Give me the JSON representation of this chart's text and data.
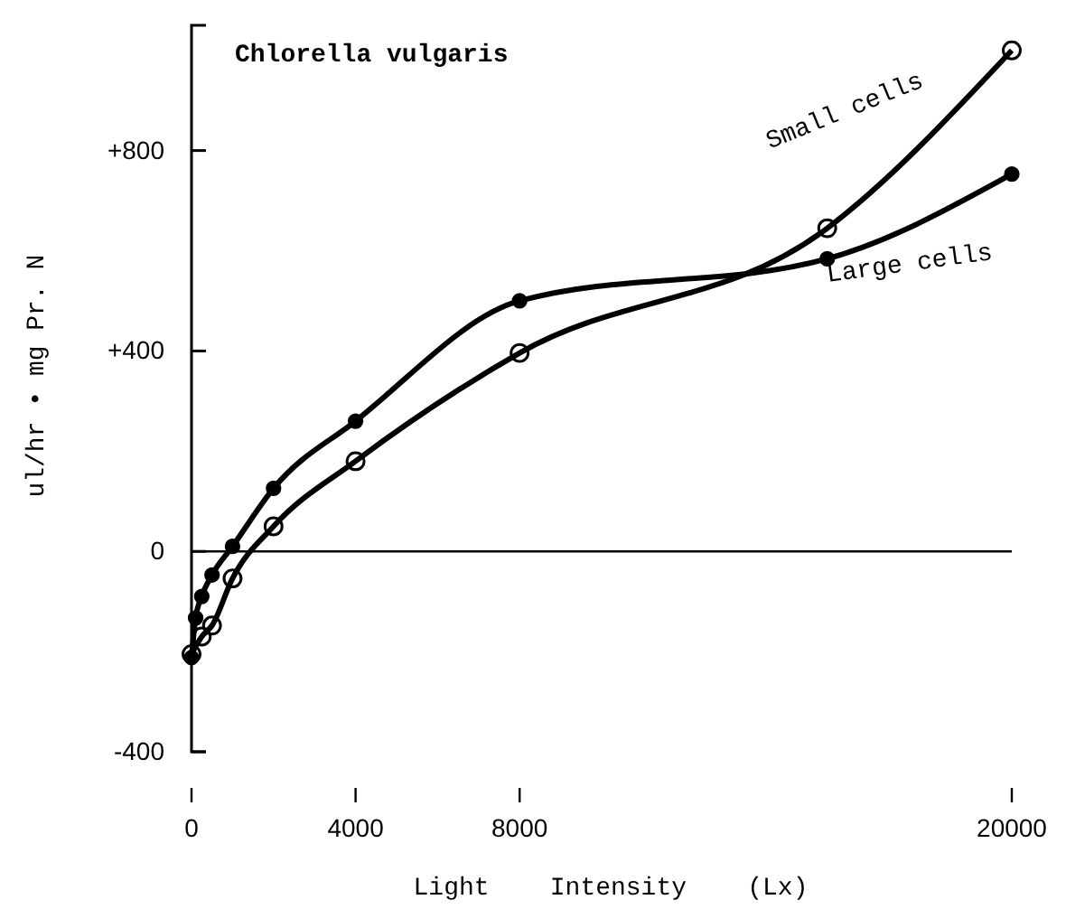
{
  "chart_data": {
    "type": "line",
    "title": "Chlorella vulgaris",
    "xlabel": "Light    Intensity    (Lx)",
    "ylabel": "ul/hr • mg Pr. N",
    "series": [
      {
        "name": "Small cells",
        "color": "#000000",
        "x": [
          0,
          250,
          500,
          1000,
          2000,
          4000,
          8000,
          15500,
          20000
        ],
        "values": [
          -205,
          -170,
          -148,
          -54,
          50,
          180,
          396,
          645,
          1000
        ]
      },
      {
        "name": "Large cells",
        "color": "#000000",
        "x": [
          0,
          100,
          250,
          500,
          1000,
          2000,
          4000,
          8000,
          15500,
          20000
        ],
        "values": [
          -212,
          -133,
          -90,
          -47,
          10,
          126,
          260,
          500,
          584,
          753
        ]
      }
    ],
    "xlim": [
      0,
      20000
    ],
    "xticks": [
      0,
      4000,
      8000,
      20000
    ],
    "ylim": [
      -400,
      1050
    ],
    "yticks": [
      {
        "value": -400,
        "label": "-400"
      },
      0,
      {
        "value": 400,
        "label": "+400"
      },
      {
        "value": 800,
        "label": "+800"
      }
    ],
    "ref_lines": [
      {
        "axis": "y",
        "value": 0
      }
    ],
    "marker": "circle",
    "grid": false,
    "legend": false
  }
}
